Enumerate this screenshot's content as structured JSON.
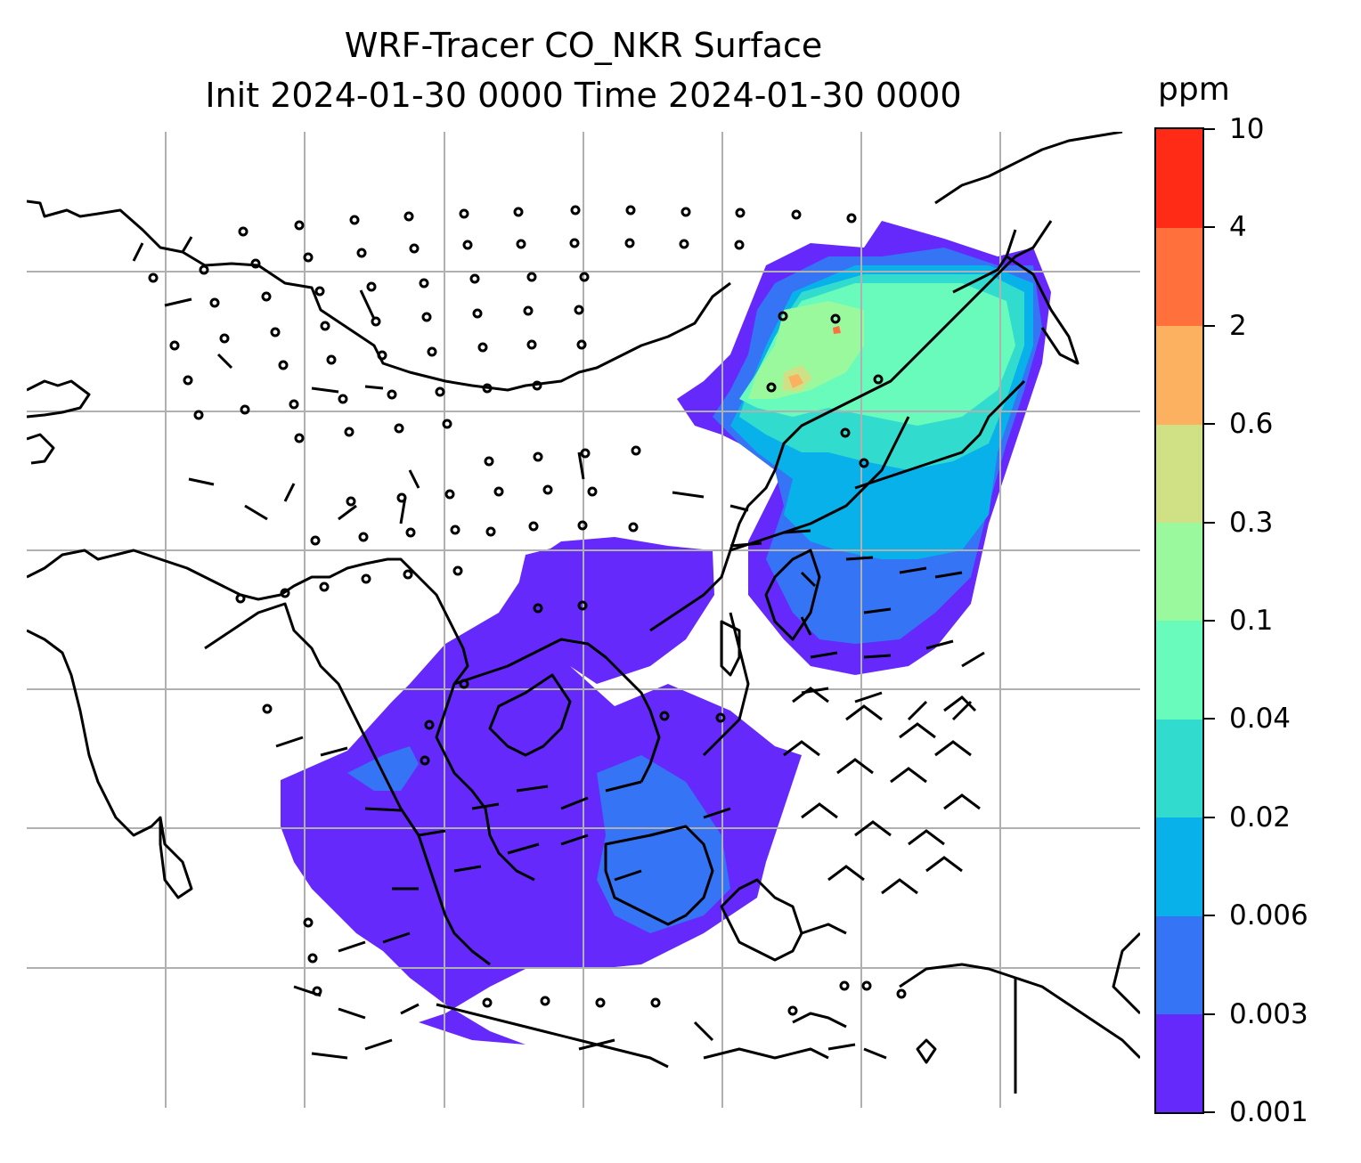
{
  "title": {
    "line1": "WRF-Tracer CO_NKR Surface",
    "line2": "Init 2024-01-30 0000 Time 2024-01-30 0000"
  },
  "colorbar": {
    "unit": "ppm",
    "levels": [
      "0.001",
      "0.003",
      "0.006",
      "0.02",
      "0.04",
      "0.1",
      "0.3",
      "0.6",
      "2",
      "4",
      "10"
    ],
    "colors": [
      "#6629fc",
      "#3574f5",
      "#08b1ea",
      "#31dccf",
      "#68fbbc",
      "#9bf99d",
      "#cfe184",
      "#fcb161",
      "#ff703d",
      "#ff2b17"
    ]
  },
  "map": {
    "gridlines": true,
    "gridline_color": "#b0b0b0",
    "coastline_color": "#000000",
    "wind_barbs": "present"
  }
}
